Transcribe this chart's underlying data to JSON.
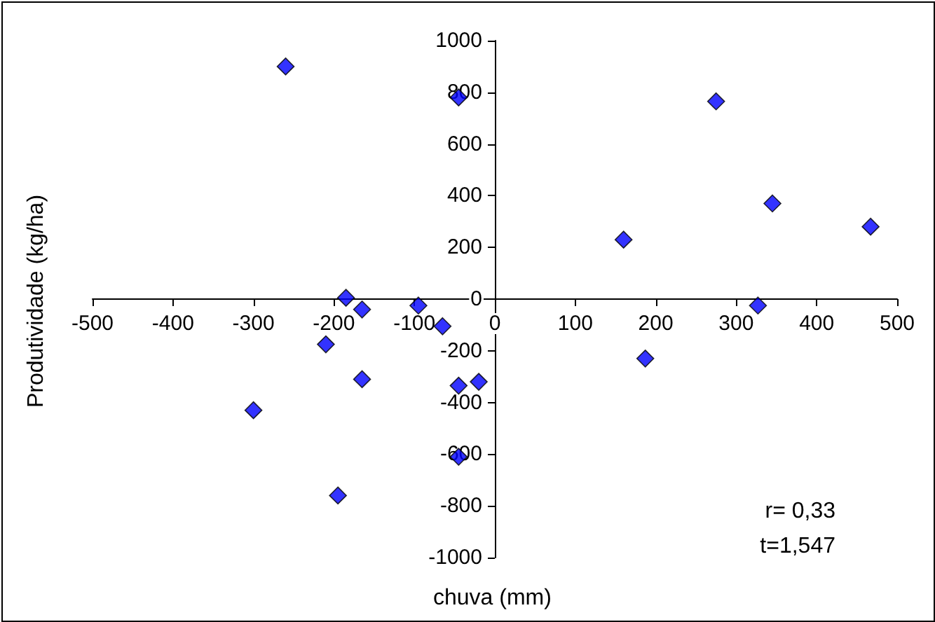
{
  "chart_data": {
    "type": "scatter",
    "xlabel": "chuva (mm)",
    "ylabel": "Produtividade (kg/ha)",
    "annotations": [
      "r= 0,33",
      "t=1,547"
    ],
    "x": [
      -260,
      -45,
      -185,
      -165,
      -95,
      -65,
      -210,
      -165,
      -45,
      -20,
      -300,
      -45,
      -195,
      160,
      275,
      345,
      467,
      327,
      187
    ],
    "values": [
      900,
      780,
      5,
      -40,
      -25,
      -105,
      -175,
      -310,
      -335,
      -320,
      -430,
      -610,
      -760,
      230,
      765,
      370,
      280,
      -25,
      -230
    ],
    "color": "#0000ff",
    "marker": "diamond",
    "xlim": [
      -500,
      500
    ],
    "xticks": [
      -500,
      -400,
      -300,
      -200,
      -100,
      0,
      100,
      200,
      300,
      400,
      500
    ],
    "ylim": [
      -1000,
      1000
    ],
    "yticks": [
      -1000,
      -800,
      -600,
      -400,
      -200,
      0,
      200,
      400,
      600,
      800,
      1000
    ],
    "tick_labels": "xy"
  }
}
